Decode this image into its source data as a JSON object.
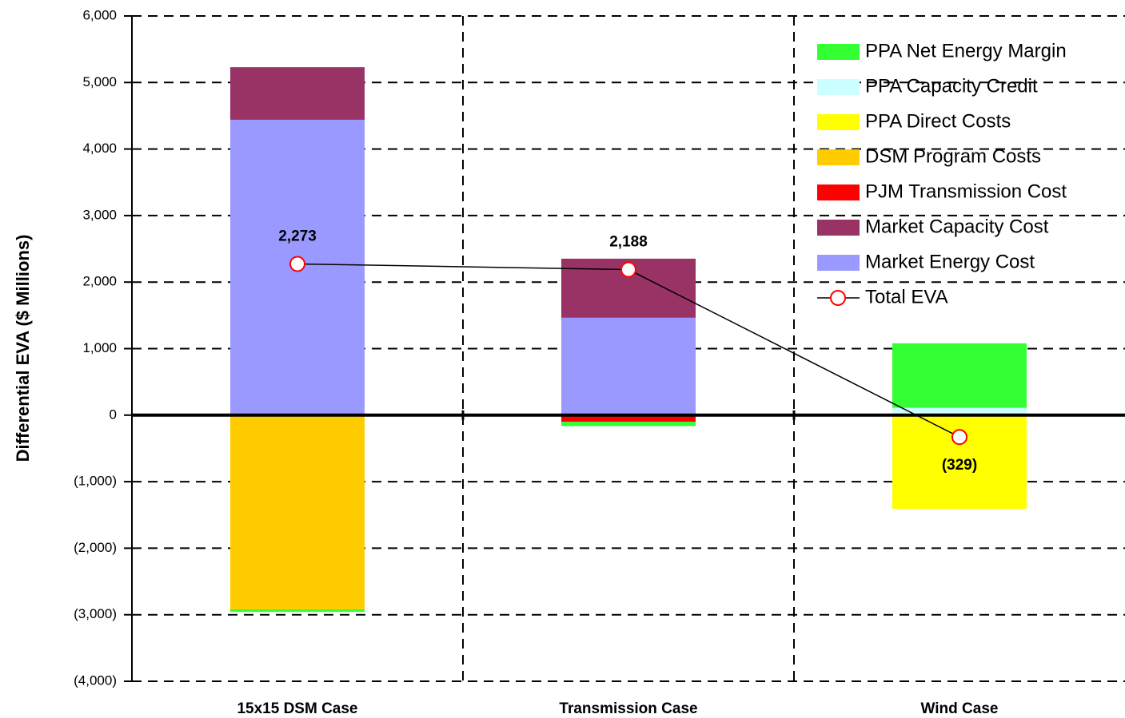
{
  "chart_data": {
    "type": "bar",
    "stacked": true,
    "ylabel": "Differential EVA ($ Millions)",
    "categories": [
      "15x15 DSM Case",
      "Transmission Case",
      "Wind Case"
    ],
    "series": [
      {
        "name": "PPA Net Energy Margin",
        "color": "#33ff33",
        "values": [
          -37,
          -64,
          970
        ]
      },
      {
        "name": "PPA Capacity Credit",
        "color": "#ccffff",
        "values": [
          0,
          0,
          110
        ]
      },
      {
        "name": "PPA Direct Costs",
        "color": "#ffff00",
        "values": [
          0,
          0,
          -1409
        ]
      },
      {
        "name": "DSM Program Costs",
        "color": "#ffcc00",
        "values": [
          -2920,
          0,
          0
        ]
      },
      {
        "name": "PJM Transmission Cost",
        "color": "#ff0000",
        "values": [
          0,
          -100,
          0
        ]
      },
      {
        "name": "Market Capacity Cost",
        "color": "#993366",
        "values": [
          790,
          888,
          0
        ]
      },
      {
        "name": "Market Energy Cost",
        "color": "#9999ff",
        "values": [
          4440,
          1464,
          0
        ]
      },
      {
        "name": "Total EVA",
        "type": "line",
        "color": "#ff0000",
        "values": [
          2273,
          2188,
          -329
        ],
        "value_labels": [
          "2,273",
          "2,188",
          "(329)"
        ]
      }
    ],
    "ylim": [
      -4000,
      6000
    ],
    "yticks": [
      {
        "value": -4000,
        "label": "(4,000)"
      },
      {
        "value": -3000,
        "label": "(3,000)"
      },
      {
        "value": -2000,
        "label": "(2,000)"
      },
      {
        "value": -1000,
        "label": "(1,000)"
      },
      0,
      {
        "value": 1000,
        "label": "1,000"
      },
      {
        "value": 2000,
        "label": "2,000"
      },
      {
        "value": 3000,
        "label": "3,000"
      },
      {
        "value": 4000,
        "label": "4,000"
      },
      {
        "value": 5000,
        "label": "5,000"
      },
      {
        "value": 6000,
        "label": "6,000"
      }
    ],
    "grid": true,
    "legend": "upper right"
  }
}
